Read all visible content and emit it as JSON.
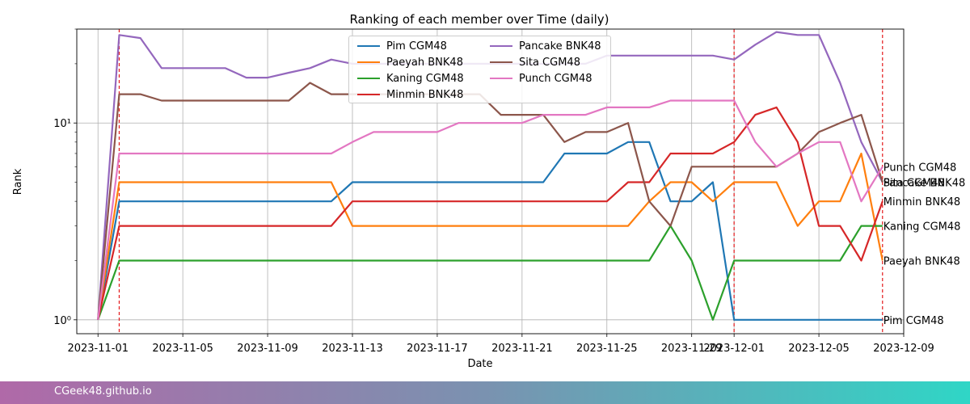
{
  "chart_data": {
    "type": "line",
    "title": "Ranking of each member over Time (daily)",
    "xlabel": "Date",
    "ylabel": "Rank",
    "yscale": "log",
    "ylim": [
      0.85,
      30
    ],
    "xlim": [
      "2023-10-31",
      "2023-12-09"
    ],
    "x_ticks": [
      "2023-11-01",
      "2023-11-05",
      "2023-11-09",
      "2023-11-13",
      "2023-11-17",
      "2023-11-21",
      "2023-11-25",
      "2023-11-29",
      "2023-12-01",
      "2023-12-05",
      "2023-12-09"
    ],
    "y_ticks": [
      {
        "value": 1,
        "label": "10⁰"
      },
      {
        "value": 10,
        "label": "10¹"
      }
    ],
    "grid": true,
    "legend_position": "upper-center",
    "event_lines": [
      "2023-11-02",
      "2023-12-01",
      "2023-12-08"
    ],
    "event_line_color": "#e41a1c",
    "dates": [
      "2023-11-01",
      "2023-11-02",
      "2023-11-03",
      "2023-11-04",
      "2023-11-05",
      "2023-11-06",
      "2023-11-07",
      "2023-11-08",
      "2023-11-09",
      "2023-11-10",
      "2023-11-11",
      "2023-11-12",
      "2023-11-13",
      "2023-11-14",
      "2023-11-15",
      "2023-11-16",
      "2023-11-17",
      "2023-11-18",
      "2023-11-19",
      "2023-11-20",
      "2023-11-21",
      "2023-11-22",
      "2023-11-23",
      "2023-11-24",
      "2023-11-25",
      "2023-11-26",
      "2023-11-27",
      "2023-11-28",
      "2023-11-29",
      "2023-11-30",
      "2023-12-01",
      "2023-12-02",
      "2023-12-03",
      "2023-12-04",
      "2023-12-05",
      "2023-12-06",
      "2023-12-07",
      "2023-12-08"
    ],
    "series": [
      {
        "name": "Pim CGM48",
        "color": "#1f77b4",
        "values": [
          1,
          4,
          4,
          4,
          4,
          4,
          4,
          4,
          4,
          4,
          4,
          4,
          5,
          5,
          5,
          5,
          5,
          5,
          5,
          5,
          5,
          5,
          7,
          7,
          7,
          8,
          8,
          4,
          4,
          5,
          1,
          1,
          1,
          1,
          1,
          1,
          1,
          1
        ]
      },
      {
        "name": "Paeyah BNK48",
        "color": "#ff7f0e",
        "values": [
          1,
          5,
          5,
          5,
          5,
          5,
          5,
          5,
          5,
          5,
          5,
          5,
          3,
          3,
          3,
          3,
          3,
          3,
          3,
          3,
          3,
          3,
          3,
          3,
          3,
          3,
          4,
          5,
          5,
          4,
          5,
          5,
          5,
          3,
          4,
          4,
          7,
          2
        ]
      },
      {
        "name": "Kaning CGM48",
        "color": "#2ca02c",
        "values": [
          1,
          2,
          2,
          2,
          2,
          2,
          2,
          2,
          2,
          2,
          2,
          2,
          2,
          2,
          2,
          2,
          2,
          2,
          2,
          2,
          2,
          2,
          2,
          2,
          2,
          2,
          2,
          3,
          2,
          1,
          2,
          2,
          2,
          2,
          2,
          2,
          3,
          3
        ]
      },
      {
        "name": "Minmin BNK48",
        "color": "#d62728",
        "values": [
          1,
          3,
          3,
          3,
          3,
          3,
          3,
          3,
          3,
          3,
          3,
          3,
          4,
          4,
          4,
          4,
          4,
          4,
          4,
          4,
          4,
          4,
          4,
          4,
          4,
          5,
          5,
          7,
          7,
          7,
          8,
          11,
          12,
          8,
          3,
          3,
          2,
          4
        ]
      },
      {
        "name": "Pancake BNK48",
        "color": "#9467bd",
        "values": [
          1,
          28,
          27,
          19,
          19,
          19,
          19,
          17,
          17,
          18,
          19,
          21,
          20,
          20,
          20,
          20,
          20,
          20,
          20,
          20,
          20,
          20,
          20,
          20,
          22,
          22,
          22,
          22,
          22,
          22,
          21,
          25,
          29,
          28,
          28,
          16,
          8,
          5
        ]
      },
      {
        "name": "Sita CGM48",
        "color": "#8c564b",
        "values": [
          1,
          14,
          14,
          13,
          13,
          13,
          13,
          13,
          13,
          13,
          16,
          14,
          14,
          14,
          14,
          14,
          14,
          14,
          14,
          11,
          11,
          11,
          8,
          9,
          9,
          10,
          4,
          3,
          6,
          6,
          6,
          6,
          6,
          7,
          9,
          10,
          11,
          5
        ]
      },
      {
        "name": "Punch CGM48",
        "color": "#e377c2",
        "values": [
          1,
          7,
          7,
          7,
          7,
          7,
          7,
          7,
          7,
          7,
          7,
          7,
          8,
          9,
          9,
          9,
          9,
          10,
          10,
          10,
          10,
          11,
          11,
          11,
          12,
          12,
          12,
          13,
          13,
          13,
          13,
          8,
          6,
          7,
          8,
          8,
          4,
          6
        ]
      }
    ],
    "end_labels": [
      {
        "series": "Punch CGM48",
        "text": "Punch CGM48"
      },
      {
        "series": "Sita CGM48",
        "text": "Sita CGM48"
      },
      {
        "series": "Pancake BNK48",
        "text": "Pancake BNK48"
      },
      {
        "series": "Minmin BNK48",
        "text": "Minmin BNK48"
      },
      {
        "series": "Kaning CGM48",
        "text": "Kaning CGM48"
      },
      {
        "series": "Paeyah BNK48",
        "text": "Paeyah BNK48"
      },
      {
        "series": "Pim CGM48",
        "text": "Pim CGM48"
      }
    ]
  },
  "legend": {
    "col1": [
      "Pim CGM48",
      "Paeyah BNK48",
      "Kaning CGM48",
      "Minmin BNK48"
    ],
    "col2": [
      "Pancake BNK48",
      "Sita CGM48",
      "Punch CGM48"
    ]
  },
  "footer": {
    "text": "CGeek48.github.io"
  }
}
